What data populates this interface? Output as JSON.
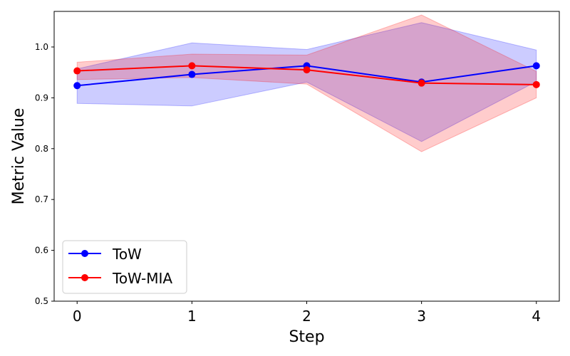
{
  "chart_data": {
    "type": "line",
    "title": "",
    "xlabel": "Step",
    "ylabel": "Metric Value",
    "x": [
      0,
      1,
      2,
      3,
      4
    ],
    "xticks": [
      "0",
      "1",
      "2",
      "3",
      "4"
    ],
    "yticks": [
      "0.5",
      "0.6",
      "0.7",
      "0.8",
      "0.9",
      "1.0"
    ],
    "xlim": [
      -0.2,
      4.2
    ],
    "ylim": [
      0.5,
      1.07
    ],
    "grid": false,
    "legend_position": "lower-left",
    "series": [
      {
        "name": "ToW",
        "color": "#0000ff",
        "fill_color": "#0000ff",
        "values": [
          0.924,
          0.946,
          0.963,
          0.931,
          0.963
        ],
        "lower": [
          0.889,
          0.884,
          0.931,
          0.814,
          0.932
        ],
        "upper": [
          0.957,
          1.008,
          0.995,
          1.048,
          0.994
        ]
      },
      {
        "name": "ToW-MIA",
        "color": "#ff0000",
        "fill_color": "#ff0000",
        "values": [
          0.953,
          0.963,
          0.955,
          0.929,
          0.926
        ],
        "lower": [
          0.936,
          0.94,
          0.927,
          0.794,
          0.9
        ],
        "upper": [
          0.97,
          0.986,
          0.984,
          1.063,
          0.952
        ]
      }
    ]
  }
}
